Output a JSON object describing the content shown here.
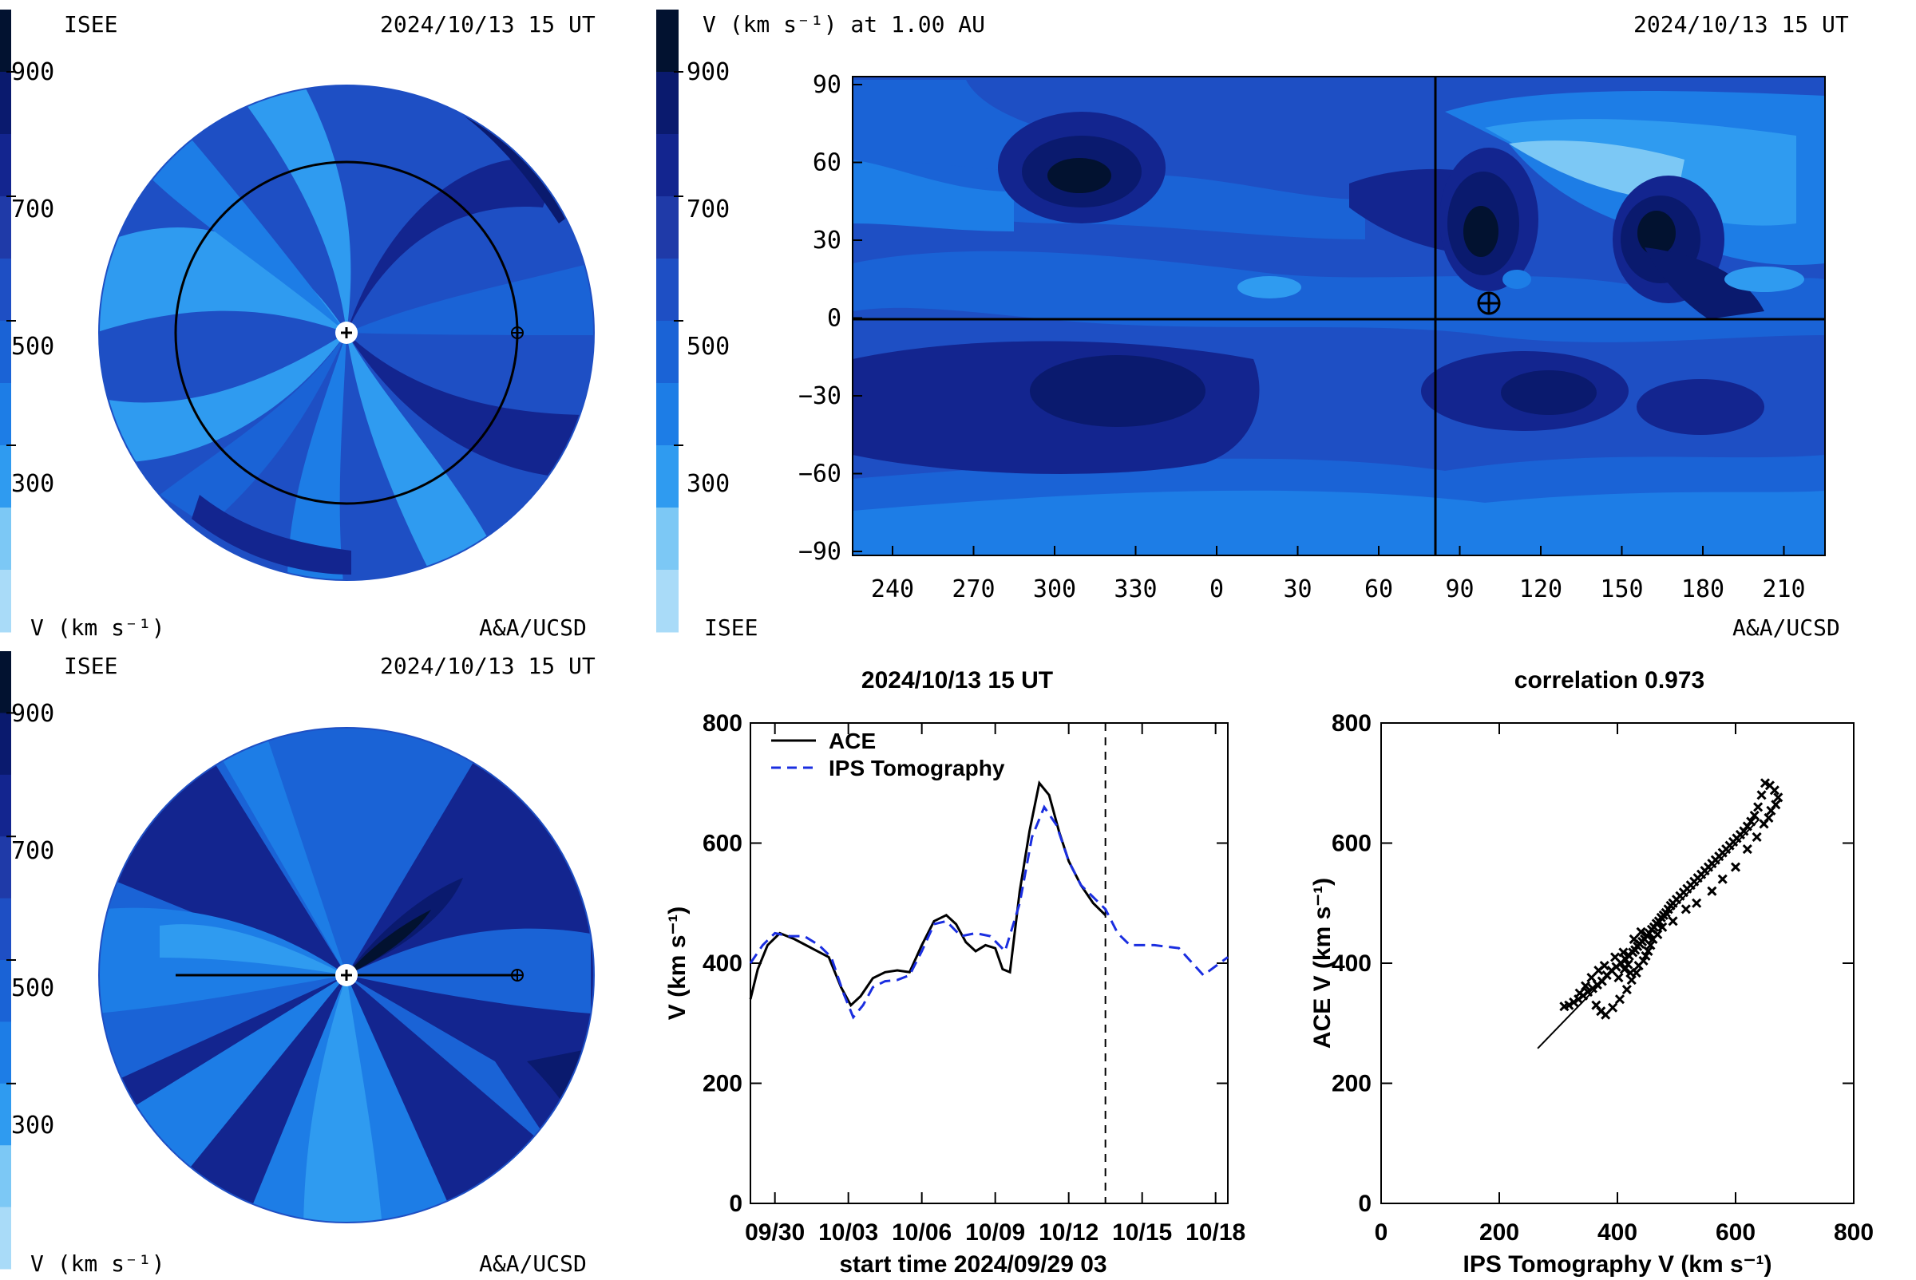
{
  "colorbar": {
    "levels": [
      "900",
      "700",
      "500",
      "300"
    ],
    "colors": [
      "#021230",
      "#0a1a6e",
      "#13258f",
      "#1f3aa8",
      "#1e4fc4",
      "#1a63d6",
      "#1d7de6",
      "#2f9bf0",
      "#7cc8f5",
      "#a9dbf8"
    ]
  },
  "panel_ecliptic": {
    "org": "ISEE",
    "date": "2024/10/13 15 UT",
    "units": "V (km s⁻¹)",
    "credit": "A&A/UCSD"
  },
  "panel_meridional": {
    "org": "ISEE",
    "date": "2024/10/13 15 UT",
    "units": "V (km s⁻¹)",
    "credit": "A&A/UCSD"
  },
  "panel_synoptic": {
    "title": "V (km s⁻¹) at 1.00 AU",
    "date": "2024/10/13 15 UT",
    "org": "ISEE",
    "credit": "A&A/UCSD",
    "x_ticks": [
      "240",
      "270",
      "300",
      "330",
      "0",
      "30",
      "60",
      "90",
      "120",
      "150",
      "180",
      "210"
    ],
    "y_ticks": [
      "90",
      "60",
      "30",
      "0",
      "−30",
      "−60",
      "−90"
    ]
  },
  "chart_data": [
    {
      "type": "line",
      "title": "2024/10/13 15 UT",
      "xlabel": "start time 2024/09/29 03",
      "ylabel": "V (km s⁻¹)",
      "ylim": [
        0,
        800
      ],
      "x_tick_labels": [
        "09/30",
        "10/03",
        "10/06",
        "10/09",
        "10/12",
        "10/15",
        "10/18"
      ],
      "y_tick_labels": [
        "0",
        "200",
        "400",
        "600",
        "800"
      ],
      "xlim_days": [
        0,
        19.5
      ],
      "current_time_day": 14.5,
      "series": [
        {
          "name": "ACE",
          "color": "#000000",
          "x": [
            0.0,
            0.3,
            0.7,
            1.2,
            1.8,
            2.5,
            3.2,
            3.7,
            4.1,
            4.5,
            5.0,
            5.5,
            6.0,
            6.5,
            7.0,
            7.5,
            8.0,
            8.4,
            8.8,
            9.2,
            9.6,
            10.0,
            10.3,
            10.6,
            11.0,
            11.4,
            11.8,
            12.2,
            12.6,
            13.0,
            13.5,
            14.0,
            14.5
          ],
          "y": [
            340,
            390,
            430,
            450,
            440,
            425,
            410,
            360,
            330,
            345,
            375,
            385,
            388,
            385,
            430,
            470,
            480,
            465,
            435,
            420,
            430,
            425,
            390,
            385,
            520,
            620,
            700,
            680,
            620,
            570,
            530,
            500,
            480
          ]
        },
        {
          "name": "IPS Tomography",
          "color": "#1a2ee0",
          "dashed": true,
          "x": [
            0.0,
            0.5,
            1.0,
            1.6,
            2.2,
            2.8,
            3.3,
            3.8,
            4.2,
            4.6,
            5.0,
            5.5,
            6.0,
            6.5,
            7.0,
            7.5,
            8.0,
            8.6,
            9.2,
            9.8,
            10.4,
            11.0,
            11.5,
            12.0,
            12.5,
            13.0,
            13.5,
            14.0,
            14.5,
            15.0,
            15.5,
            16.5,
            17.5,
            18.5,
            19.5
          ],
          "y": [
            400,
            430,
            450,
            445,
            445,
            430,
            410,
            350,
            310,
            330,
            360,
            370,
            372,
            380,
            420,
            465,
            470,
            445,
            450,
            445,
            420,
            500,
            610,
            660,
            630,
            570,
            530,
            510,
            490,
            450,
            430,
            430,
            425,
            380,
            410
          ]
        }
      ]
    },
    {
      "type": "scatter",
      "title": "correlation 0.973",
      "xlabel": "IPS Tomography V (km s⁻¹)",
      "ylabel": "ACE V (km s⁻¹)",
      "xlim": [
        0,
        800
      ],
      "ylim": [
        0,
        800
      ],
      "x_tick_labels": [
        "0",
        "200",
        "400",
        "600",
        "800"
      ],
      "y_tick_labels": [
        "0",
        "200",
        "400",
        "600",
        "800"
      ],
      "fit_line": [
        [
          265,
          258
        ],
        [
          640,
          640
        ]
      ],
      "points": [
        [
          310,
          328
        ],
        [
          318,
          330
        ],
        [
          326,
          335
        ],
        [
          334,
          340
        ],
        [
          342,
          346
        ],
        [
          350,
          352
        ],
        [
          358,
          358
        ],
        [
          366,
          364
        ],
        [
          374,
          370
        ],
        [
          382,
          380
        ],
        [
          390,
          388
        ],
        [
          398,
          394
        ],
        [
          406,
          400
        ],
        [
          414,
          406
        ],
        [
          420,
          412
        ],
        [
          426,
          418
        ],
        [
          430,
          422
        ],
        [
          434,
          428
        ],
        [
          438,
          432
        ],
        [
          442,
          436
        ],
        [
          446,
          440
        ],
        [
          450,
          446
        ],
        [
          454,
          450
        ],
        [
          458,
          456
        ],
        [
          462,
          460
        ],
        [
          466,
          466
        ],
        [
          470,
          470
        ],
        [
          474,
          476
        ],
        [
          478,
          480
        ],
        [
          482,
          484
        ],
        [
          486,
          490
        ],
        [
          490,
          496
        ],
        [
          494,
          500
        ],
        [
          500,
          506
        ],
        [
          506,
          512
        ],
        [
          512,
          518
        ],
        [
          518,
          524
        ],
        [
          524,
          530
        ],
        [
          530,
          536
        ],
        [
          536,
          542
        ],
        [
          542,
          548
        ],
        [
          548,
          554
        ],
        [
          554,
          560
        ],
        [
          560,
          566
        ],
        [
          566,
          572
        ],
        [
          572,
          578
        ],
        [
          578,
          584
        ],
        [
          584,
          590
        ],
        [
          590,
          596
        ],
        [
          596,
          602
        ],
        [
          602,
          608
        ],
        [
          608,
          614
        ],
        [
          614,
          620
        ],
        [
          620,
          628
        ],
        [
          626,
          636
        ],
        [
          632,
          646
        ],
        [
          638,
          660
        ],
        [
          644,
          680
        ],
        [
          650,
          700
        ],
        [
          658,
          696
        ],
        [
          666,
          688
        ],
        [
          672,
          676
        ],
        [
          668,
          664
        ],
        [
          660,
          654
        ],
        [
          656,
          642
        ],
        [
          648,
          632
        ],
        [
          364,
          330
        ],
        [
          372,
          320
        ],
        [
          380,
          314
        ],
        [
          392,
          326
        ],
        [
          404,
          340
        ],
        [
          416,
          356
        ],
        [
          424,
          372
        ],
        [
          432,
          384
        ],
        [
          436,
          396
        ],
        [
          444,
          404
        ],
        [
          448,
          412
        ],
        [
          452,
          420
        ],
        [
          456,
          430
        ],
        [
          460,
          440
        ],
        [
          428,
          440
        ],
        [
          440,
          452
        ],
        [
          468,
          448
        ],
        [
          476,
          460
        ],
        [
          494,
          470
        ],
        [
          516,
          490
        ],
        [
          534,
          500
        ],
        [
          560,
          520
        ],
        [
          578,
          540
        ],
        [
          600,
          560
        ],
        [
          620,
          590
        ],
        [
          636,
          610
        ],
        [
          336,
          350
        ],
        [
          346,
          362
        ],
        [
          356,
          376
        ],
        [
          368,
          388
        ],
        [
          378,
          396
        ],
        [
          396,
          410
        ],
        [
          410,
          418
        ],
        [
          418,
          398
        ],
        [
          422,
          384
        ],
        [
          412,
          390
        ],
        [
          402,
          376
        ]
      ]
    }
  ]
}
